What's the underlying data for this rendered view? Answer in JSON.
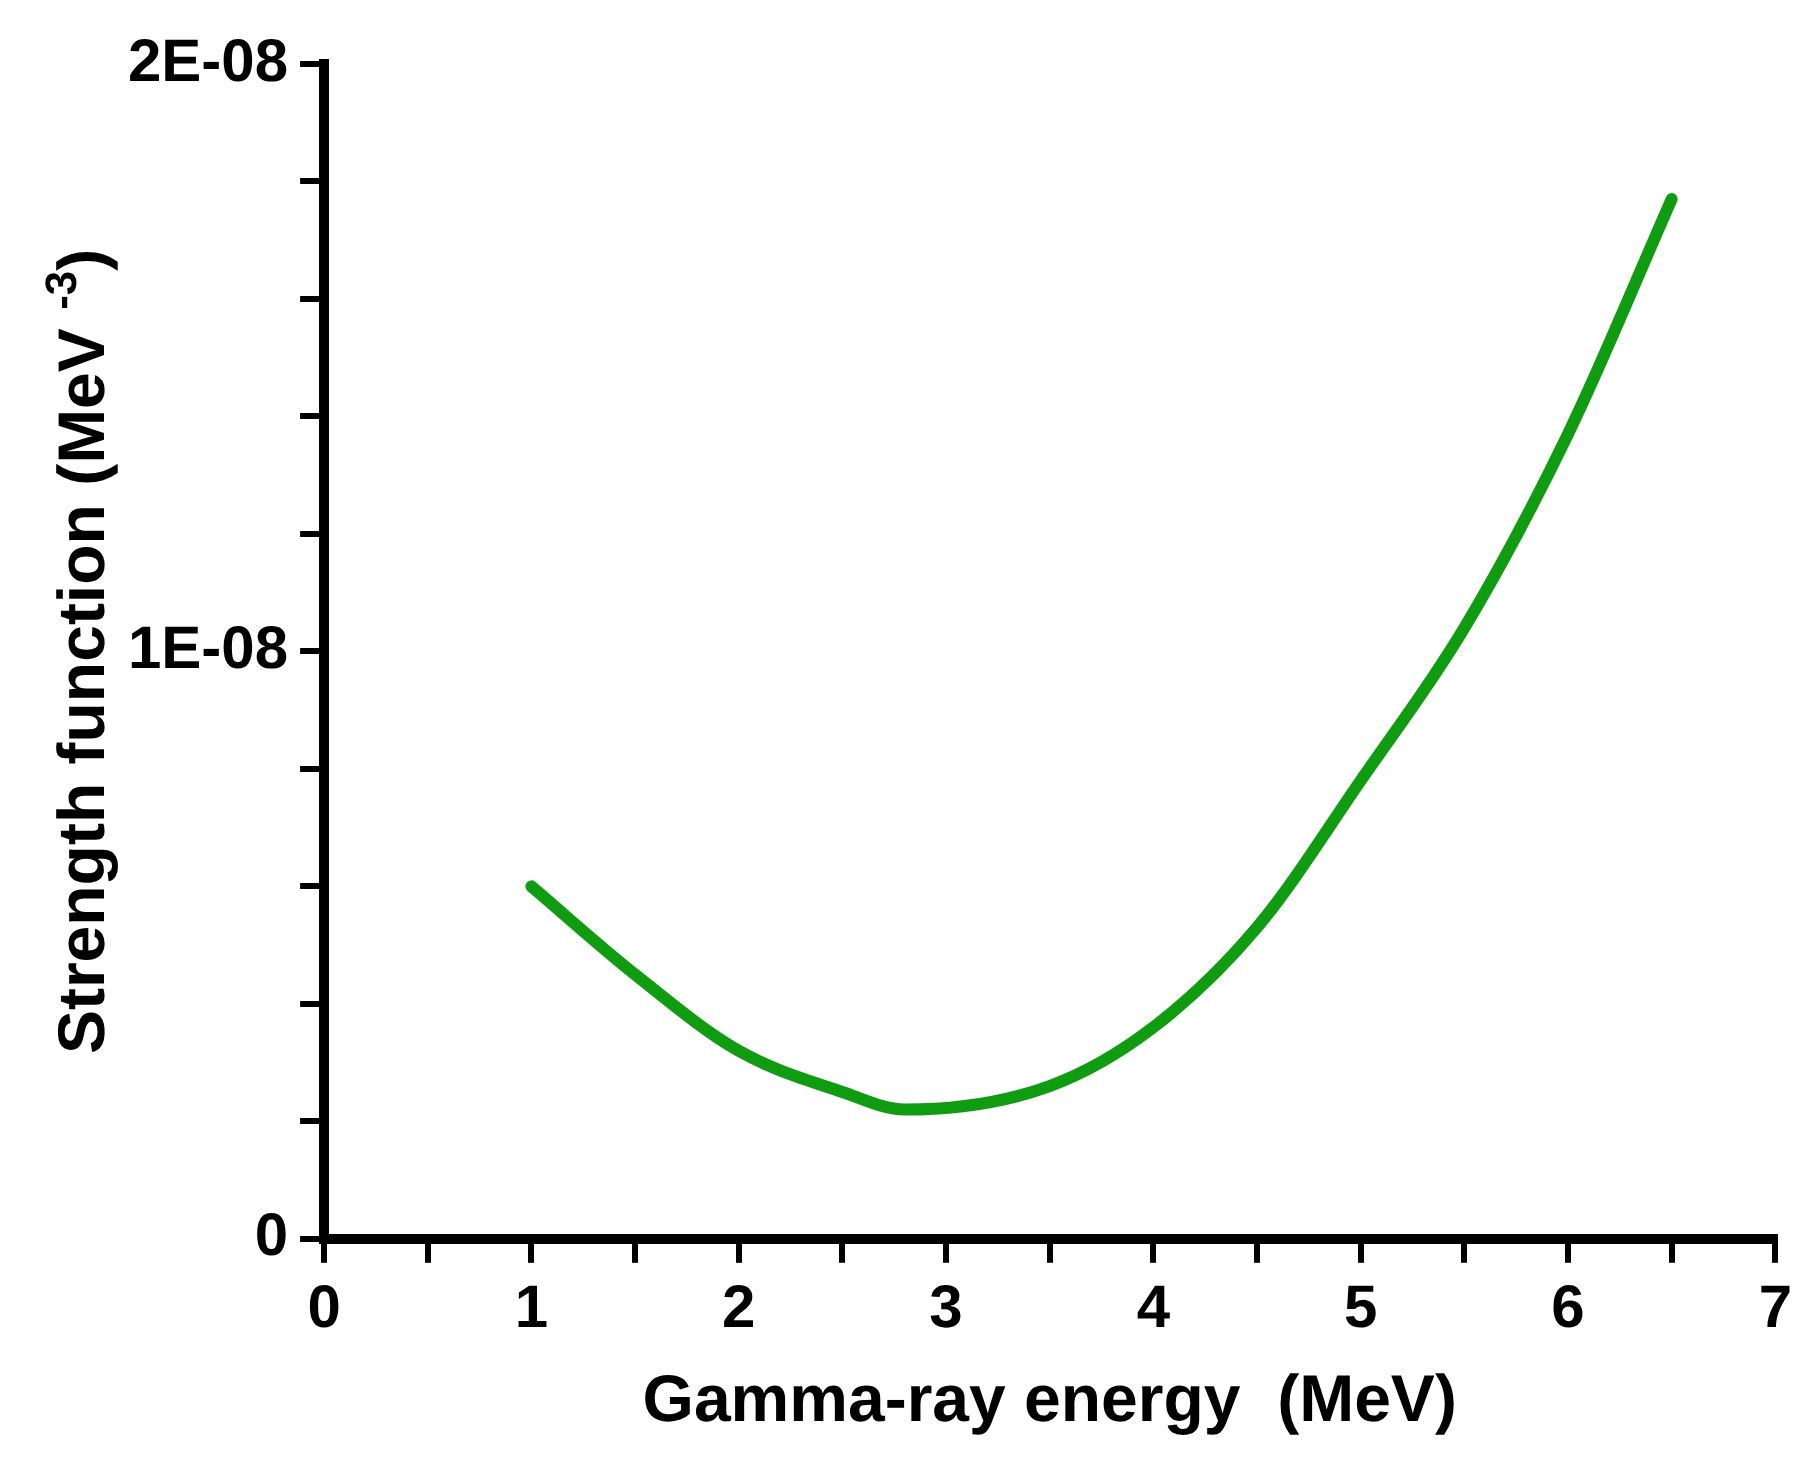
{
  "chart_data": {
    "type": "line",
    "xlabel": "Gamma-ray energy  (MeV)",
    "ylabel": "Strength function (MeV $^{-3}$)",
    "x": [
      1,
      1.5,
      2,
      2.5,
      2.8,
      3.5,
      4,
      4.5,
      5,
      5.5,
      6,
      6.5
    ],
    "series": [
      {
        "color": "#109c10",
        "values": [
          6e-09,
          4.5e-09,
          3.2e-09,
          2.5e-09,
          2.2e-09,
          2.6e-09,
          3.6e-09,
          5.3e-09,
          7.8e-09,
          1.04e-08,
          1.37e-08,
          1.77e-08
        ]
      }
    ],
    "xlim": [
      0,
      7
    ],
    "xticks": [
      0,
      {
        "value": 0.5,
        "label": null
      },
      1,
      {
        "value": 1.5,
        "label": null
      },
      2,
      {
        "value": 2.5,
        "label": null
      },
      3,
      {
        "value": 3.5,
        "label": null
      },
      4,
      {
        "value": 4.5,
        "label": null
      },
      5,
      {
        "value": 5.5,
        "label": null
      },
      6,
      {
        "value": 6.5,
        "label": null
      },
      7
    ],
    "ylim": [
      0,
      2e-08
    ],
    "yticks": [
      {
        "value": 0,
        "label": "0"
      },
      {
        "value": 2e-09,
        "label": null
      },
      {
        "value": 4e-09,
        "label": null
      },
      {
        "value": 6e-09,
        "label": null
      },
      {
        "value": 8e-09,
        "label": null
      },
      {
        "value": 1e-08,
        "label": "1E-08"
      },
      {
        "value": 1.2e-08,
        "label": null
      },
      {
        "value": 1.4e-08,
        "label": null
      },
      {
        "value": 1.6e-08,
        "label": null
      },
      {
        "value": 1.8e-08,
        "label": null
      },
      {
        "value": 2e-08,
        "label": "2E-08"
      }
    ],
    "legend": false,
    "marker": "none",
    "line_style": "solid"
  }
}
